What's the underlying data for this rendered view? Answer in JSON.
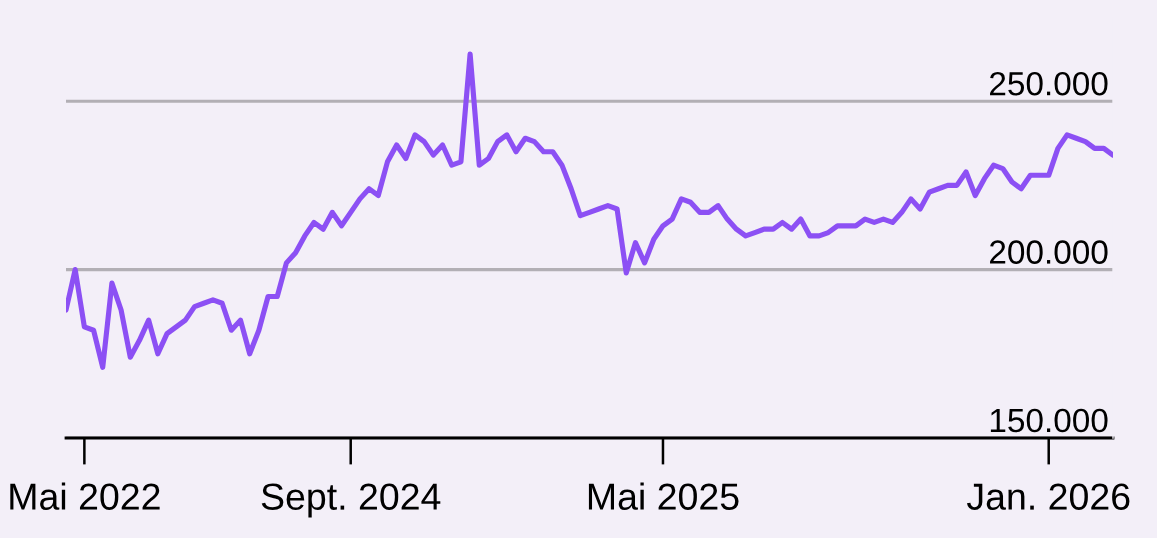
{
  "chart_data": {
    "type": "line",
    "categories": [
      null,
      null,
      "Mai 2022",
      null,
      null,
      null,
      null,
      null,
      null,
      null,
      null,
      null,
      null,
      null,
      null,
      null,
      null,
      null,
      null,
      null,
      null,
      null,
      null,
      null,
      null,
      null,
      null,
      null,
      null,
      null,
      null,
      "Sept. 2024",
      null,
      null,
      null,
      null,
      null,
      null,
      null,
      null,
      null,
      null,
      null,
      null,
      null,
      null,
      null,
      null,
      null,
      null,
      null,
      null,
      null,
      null,
      null,
      null,
      null,
      null,
      null,
      null,
      null,
      null,
      null,
      null,
      null,
      "Mai 2025",
      null,
      null,
      null,
      null,
      null,
      null,
      null,
      null,
      null,
      null,
      null,
      null,
      null,
      null,
      null,
      null,
      null,
      null,
      null,
      null,
      null,
      null,
      null,
      null,
      null,
      null,
      null,
      null,
      null,
      null,
      null,
      null,
      null,
      null,
      null,
      null,
      null,
      null,
      null,
      null,
      null,
      "Jan. 2026",
      null,
      null,
      null,
      null,
      null,
      null,
      null
    ],
    "series": [
      {
        "color": "#8c50f4",
        "values": [
          188000,
          200000,
          183000,
          182000,
          171000,
          196000,
          188000,
          174000,
          179000,
          185000,
          175000,
          181000,
          183000,
          185000,
          189000,
          190000,
          191000,
          190000,
          182000,
          185000,
          175000,
          182000,
          192000,
          192000,
          202000,
          205000,
          210000,
          214000,
          212000,
          217000,
          213000,
          217000,
          221000,
          224000,
          222000,
          232000,
          237000,
          233000,
          240000,
          238000,
          234000,
          237000,
          231000,
          232000,
          264000,
          231000,
          233000,
          238000,
          240000,
          235000,
          239000,
          238000,
          235000,
          235000,
          231000,
          224000,
          216000,
          217000,
          218000,
          219000,
          218000,
          199000,
          208000,
          202000,
          209000,
          213000,
          215000,
          221000,
          220000,
          217000,
          217000,
          219000,
          215000,
          212000,
          210000,
          211000,
          212000,
          212000,
          214000,
          212000,
          215000,
          210000,
          210000,
          211000,
          213000,
          213000,
          213000,
          215000,
          214000,
          215000,
          214000,
          217000,
          221000,
          218000,
          223000,
          224000,
          225000,
          225000,
          229000,
          222000,
          227000,
          231000,
          230000,
          226000,
          224000,
          228000,
          228000,
          228000,
          236000,
          240000,
          239000,
          238000,
          236000,
          236000,
          234000
        ]
      }
    ],
    "ylim": [
      150000,
      275000
    ],
    "yticks": [
      {
        "value": 150000,
        "label": "150.000"
      },
      {
        "value": 200000,
        "label": "200.000"
      },
      {
        "value": 250000,
        "label": "250.000"
      }
    ],
    "grid": "y"
  }
}
